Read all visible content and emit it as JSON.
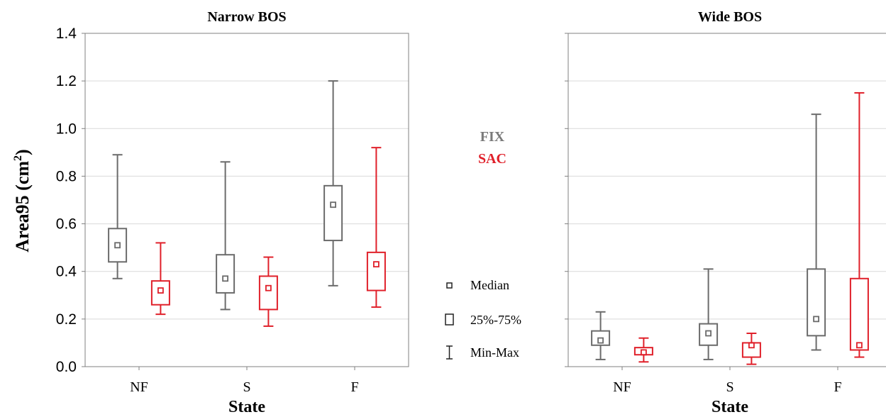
{
  "colors": {
    "fix": "#6b6b6b",
    "sac": "#e0202a",
    "grid": "#d9d9d9",
    "axis": "#808080"
  },
  "y_axis_label": "Area95 (cm",
  "y_axis_label_sup": "2",
  "y_axis_label_close": ")",
  "series_labels": {
    "fix": "FIX",
    "sac": "SAC"
  },
  "legend": {
    "median": "Median",
    "iqr": "25%-75%",
    "range": "Min-Max"
  },
  "chart_data": [
    {
      "type": "box",
      "title": "Narrow BOS",
      "xlabel": "State",
      "ylabel": "Area95 (cm²)",
      "ylim": [
        0.0,
        1.4
      ],
      "yticks": [
        "0.0",
        "0.2",
        "0.4",
        "0.6",
        "0.8",
        "1.0",
        "1.2",
        "1.4"
      ],
      "grid": true,
      "categories": [
        "NF",
        "S",
        "F"
      ],
      "series": [
        {
          "name": "FIX",
          "boxes": [
            {
              "min": 0.37,
              "q1": 0.44,
              "median": 0.51,
              "q3": 0.58,
              "max": 0.89
            },
            {
              "min": 0.24,
              "q1": 0.31,
              "median": 0.37,
              "q3": 0.47,
              "max": 0.86
            },
            {
              "min": 0.34,
              "q1": 0.53,
              "median": 0.68,
              "q3": 0.76,
              "max": 1.2
            }
          ]
        },
        {
          "name": "SAC",
          "boxes": [
            {
              "min": 0.22,
              "q1": 0.26,
              "median": 0.32,
              "q3": 0.36,
              "max": 0.52
            },
            {
              "min": 0.17,
              "q1": 0.24,
              "median": 0.33,
              "q3": 0.38,
              "max": 0.46
            },
            {
              "min": 0.25,
              "q1": 0.32,
              "median": 0.43,
              "q3": 0.48,
              "max": 0.92
            }
          ]
        }
      ]
    },
    {
      "type": "box",
      "title": "Wide BOS",
      "xlabel": "State",
      "ylim": [
        0.0,
        1.4
      ],
      "grid": true,
      "categories": [
        "NF",
        "S",
        "F"
      ],
      "series": [
        {
          "name": "FIX",
          "boxes": [
            {
              "min": 0.03,
              "q1": 0.09,
              "median": 0.11,
              "q3": 0.15,
              "max": 0.23
            },
            {
              "min": 0.03,
              "q1": 0.09,
              "median": 0.14,
              "q3": 0.18,
              "max": 0.41
            },
            {
              "min": 0.07,
              "q1": 0.13,
              "median": 0.2,
              "q3": 0.41,
              "max": 1.06
            }
          ]
        },
        {
          "name": "SAC",
          "boxes": [
            {
              "min": 0.02,
              "q1": 0.05,
              "median": 0.06,
              "q3": 0.08,
              "max": 0.12
            },
            {
              "min": 0.01,
              "q1": 0.04,
              "median": 0.09,
              "q3": 0.1,
              "max": 0.14
            },
            {
              "min": 0.04,
              "q1": 0.07,
              "median": 0.09,
              "q3": 0.37,
              "max": 1.15
            }
          ]
        }
      ]
    }
  ]
}
